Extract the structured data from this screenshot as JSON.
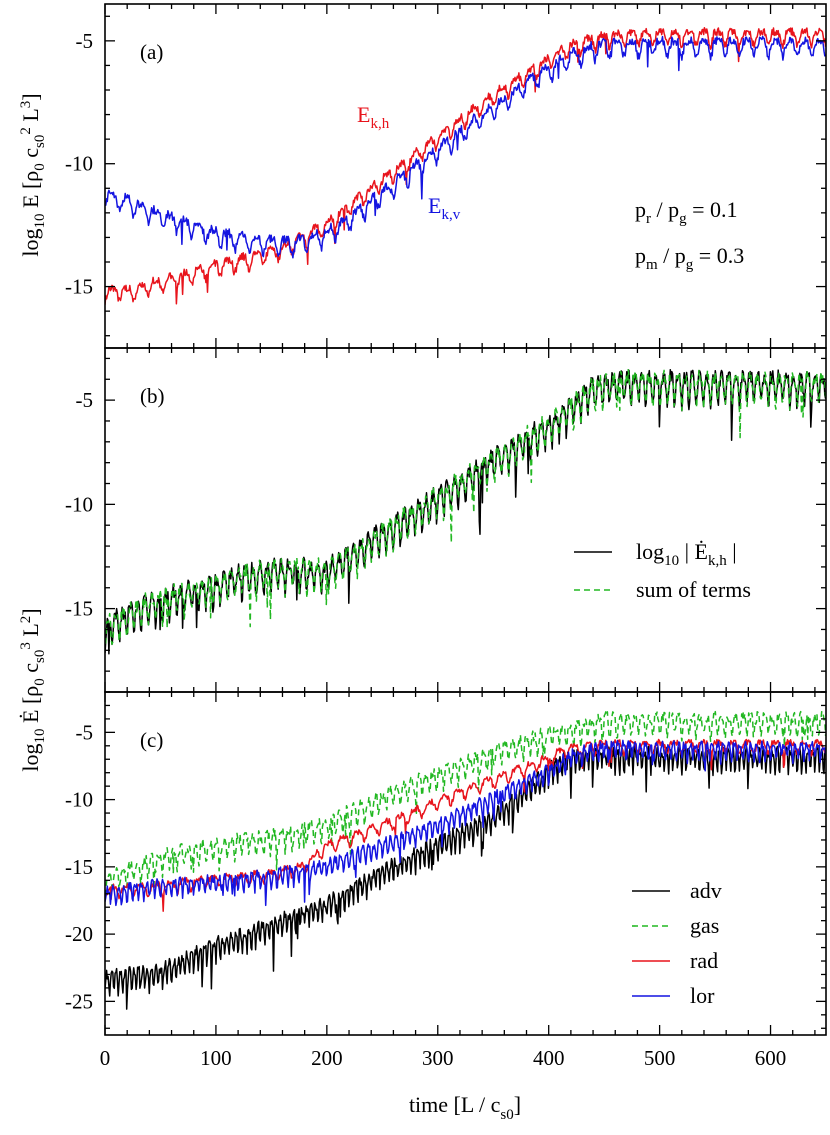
{
  "chart_data": [
    {
      "panel": "(a)",
      "type": "line",
      "xlim": [
        0,
        650
      ],
      "ylim": [
        -17.5,
        -3.5
      ],
      "yticks": [
        -15,
        -10,
        -5
      ],
      "xticks": [
        0,
        100,
        200,
        300,
        400,
        500,
        600
      ],
      "ylabel": {
        "base": "log",
        "base_sub": "10",
        "symbol": "E",
        "unit_open": "[ρ",
        "rho_sub": "0",
        "c": "c",
        "c_sub": "s0",
        "c_sup": "2",
        "L": "L",
        "L_sup": "3",
        "unit_close": "]"
      },
      "annotations": [
        {
          "main": "p",
          "sub": "r",
          "rest": " / p",
          "sub2": "g",
          "tail": " = 0.1"
        },
        {
          "main": "p",
          "sub": "m",
          "rest": " / p",
          "sub2": "g",
          "tail": " = 0.3"
        }
      ],
      "series": [
        {
          "name": "E_k,h",
          "label_main": "E",
          "label_sub": "k,h",
          "color": "#e8141c",
          "x": [
            0,
            20,
            40,
            60,
            80,
            100,
            120,
            140,
            160,
            180,
            200,
            220,
            240,
            260,
            280,
            300,
            320,
            340,
            360,
            380,
            400,
            420,
            440,
            460,
            480,
            500,
            520,
            540,
            560,
            580,
            600,
            620,
            650
          ],
          "y": [
            -15.2,
            -15.25,
            -15.0,
            -14.7,
            -14.5,
            -14.2,
            -14.0,
            -13.8,
            -13.5,
            -13.0,
            -12.5,
            -11.8,
            -11.1,
            -10.4,
            -9.7,
            -9.0,
            -8.3,
            -7.6,
            -7.0,
            -6.4,
            -5.8,
            -5.3,
            -5.0,
            -4.85,
            -4.8,
            -4.8,
            -4.8,
            -4.8,
            -4.8,
            -4.8,
            -4.8,
            -4.8,
            -4.8
          ],
          "osc_period": 13,
          "osc_amp": 0.35
        },
        {
          "name": "E_k,v",
          "label_main": "E",
          "label_sub": "k,v",
          "color": "#1414e0",
          "x": [
            0,
            20,
            40,
            60,
            80,
            100,
            120,
            140,
            160,
            180,
            200,
            220,
            240,
            260,
            280,
            300,
            320,
            340,
            360,
            380,
            400,
            420,
            440,
            460,
            480,
            500,
            520,
            540,
            560,
            580,
            600,
            620,
            650
          ],
          "y": [
            -11.3,
            -11.6,
            -12.0,
            -12.3,
            -12.6,
            -12.9,
            -13.1,
            -13.2,
            -13.3,
            -13.2,
            -12.9,
            -12.3,
            -11.6,
            -10.9,
            -10.2,
            -9.5,
            -8.8,
            -8.1,
            -7.5,
            -6.8,
            -6.2,
            -5.7,
            -5.35,
            -5.2,
            -5.2,
            -5.2,
            -5.2,
            -5.2,
            -5.2,
            -5.2,
            -5.2,
            -5.2,
            -5.2
          ],
          "osc_period": 13,
          "osc_amp": 0.4
        }
      ]
    },
    {
      "panel": "(b)",
      "type": "line",
      "xlim": [
        0,
        650
      ],
      "ylim": [
        -19,
        -2.5
      ],
      "yticks": [
        -15,
        -10,
        -5
      ],
      "xticks": [
        0,
        100,
        200,
        300,
        400,
        500,
        600
      ],
      "legend_placement": "right-middle",
      "series": [
        {
          "name": "log10 |Ė_k,h|",
          "label_main": "log",
          "label_sub": "10",
          "label_rest": " | Ė",
          "label_sub2": "k,h",
          "label_tail": " |",
          "color": "#000000",
          "dash": "none",
          "x": [
            0,
            20,
            40,
            60,
            80,
            100,
            120,
            140,
            160,
            180,
            200,
            220,
            240,
            260,
            280,
            300,
            320,
            340,
            360,
            380,
            400,
            420,
            440,
            460,
            480,
            500,
            520,
            540,
            560,
            580,
            600,
            620,
            650
          ],
          "y": [
            -16.0,
            -15.5,
            -14.9,
            -14.6,
            -14.3,
            -14.0,
            -13.6,
            -13.4,
            -13.3,
            -13.3,
            -13.3,
            -12.6,
            -11.9,
            -11.2,
            -10.5,
            -9.8,
            -9.1,
            -8.4,
            -7.7,
            -7.0,
            -6.3,
            -5.5,
            -4.6,
            -4.3,
            -4.3,
            -4.3,
            -4.3,
            -4.3,
            -4.3,
            -4.3,
            -4.3,
            -4.3,
            -4.3
          ],
          "osc_period": 6.5,
          "osc_amp": 0.8
        },
        {
          "name": "sum of terms",
          "label_main": "sum of terms",
          "color": "#22b822",
          "dash": "6,4",
          "x": [
            0,
            20,
            40,
            60,
            80,
            100,
            120,
            140,
            160,
            180,
            200,
            220,
            240,
            260,
            280,
            300,
            320,
            340,
            360,
            380,
            400,
            420,
            440,
            460,
            480,
            500,
            520,
            540,
            560,
            580,
            600,
            620,
            650
          ],
          "y": [
            -16.0,
            -15.5,
            -14.9,
            -14.6,
            -14.3,
            -14.0,
            -13.6,
            -13.4,
            -13.3,
            -13.3,
            -13.3,
            -12.6,
            -11.9,
            -11.2,
            -10.5,
            -9.8,
            -9.1,
            -8.4,
            -7.7,
            -7.0,
            -6.3,
            -5.5,
            -4.6,
            -4.3,
            -4.3,
            -4.3,
            -4.3,
            -4.3,
            -4.3,
            -4.3,
            -4.3,
            -4.3,
            -4.3
          ],
          "osc_period": 6.5,
          "osc_amp": 0.8
        }
      ]
    },
    {
      "panel": "(c)",
      "type": "line",
      "xlim": [
        0,
        650
      ],
      "ylim": [
        -27.5,
        -2
      ],
      "yticks": [
        -25,
        -20,
        -15,
        -10,
        -5
      ],
      "xticks": [
        0,
        100,
        200,
        300,
        400,
        500,
        600
      ],
      "xlabel": {
        "text": "time [L /  c",
        "sub": "s0",
        "close": "]"
      },
      "ylabel": {
        "base": "log",
        "base_sub": "10",
        "symbol": "Ė",
        "unit_open": "[ρ",
        "rho_sub": "0",
        "c": "c",
        "c_sub": "s0",
        "c_sup": "3",
        "L": "L",
        "L_sup": "2",
        "unit_close": "]"
      },
      "legend_placement": "right-middle",
      "series": [
        {
          "name": "adv",
          "color": "#000000",
          "dash": "none",
          "x": [
            0,
            50,
            100,
            150,
            200,
            250,
            300,
            350,
            380,
            400,
            420,
            450,
            500,
            550,
            600,
            650
          ],
          "y": [
            -23.5,
            -23.0,
            -21.0,
            -19.5,
            -18.0,
            -15.5,
            -13.5,
            -11.5,
            -9.5,
            -8.0,
            -7.0,
            -6.8,
            -6.9,
            -6.9,
            -6.9,
            -6.9
          ],
          "osc_period": 4,
          "osc_amp": 0.9
        },
        {
          "name": "gas",
          "color": "#22b822",
          "dash": "6,4",
          "x": [
            0,
            50,
            100,
            150,
            200,
            250,
            300,
            350,
            400,
            450,
            500,
            550,
            600,
            650
          ],
          "y": [
            -16.0,
            -14.5,
            -13.5,
            -13.0,
            -12.0,
            -10.0,
            -8.3,
            -6.7,
            -5.3,
            -4.3,
            -4.3,
            -4.3,
            -4.3,
            -4.3
          ],
          "osc_period": 6.5,
          "osc_amp": 0.9
        },
        {
          "name": "rad",
          "color": "#e8141c",
          "dash": "none",
          "x": [
            0,
            50,
            100,
            150,
            180,
            200,
            250,
            300,
            350,
            400,
            420,
            450,
            500,
            550,
            600,
            650
          ],
          "y": [
            -16.8,
            -16.5,
            -16.0,
            -15.6,
            -15.0,
            -13.5,
            -12.0,
            -10.2,
            -8.6,
            -7.0,
            -6.2,
            -6.0,
            -6.0,
            -6.0,
            -6.0,
            -6.0
          ],
          "osc_period": 13,
          "osc_amp": 0.5
        },
        {
          "name": "lor",
          "color": "#1414e0",
          "dash": "none",
          "x": [
            0,
            50,
            100,
            150,
            200,
            250,
            300,
            350,
            400,
            420,
            450,
            500,
            550,
            600,
            650
          ],
          "y": [
            -17.0,
            -16.5,
            -16.2,
            -15.8,
            -15.0,
            -13.5,
            -12.0,
            -10.0,
            -8.0,
            -6.8,
            -6.2,
            -6.3,
            -6.3,
            -6.3,
            -6.3
          ],
          "osc_period": 5,
          "osc_amp": 0.7
        }
      ]
    }
  ]
}
